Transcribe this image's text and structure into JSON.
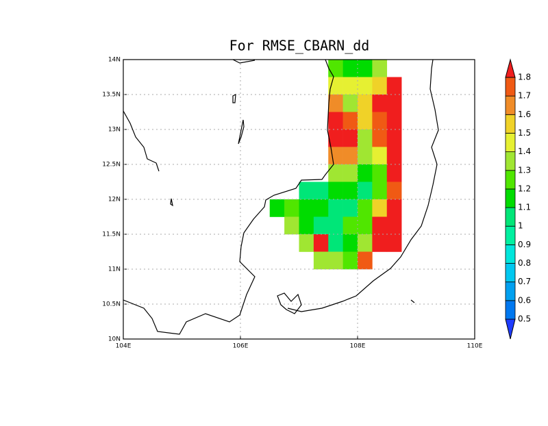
{
  "chart_data": {
    "type": "gridmap",
    "title": "For RMSE_CBARN_dd",
    "x": [
      106.625,
      106.875,
      107.125,
      107.375,
      107.625,
      107.875,
      108.125,
      108.375,
      108.625
    ],
    "y": [
      13.875,
      13.625,
      13.375,
      13.125,
      12.875,
      12.625,
      12.375,
      12.125,
      11.875,
      11.625,
      11.375,
      11.125
    ],
    "cell": 0.25,
    "values": [
      [
        null,
        null,
        null,
        null,
        1.25,
        1.15,
        1.15,
        1.35,
        null
      ],
      [
        null,
        null,
        null,
        null,
        1.45,
        1.45,
        1.45,
        1.55,
        1.85
      ],
      [
        null,
        null,
        null,
        null,
        1.65,
        1.35,
        1.55,
        1.85,
        1.85
      ],
      [
        null,
        null,
        null,
        null,
        1.85,
        1.75,
        1.55,
        1.75,
        1.85
      ],
      [
        null,
        null,
        null,
        null,
        1.85,
        1.85,
        1.35,
        1.75,
        1.85
      ],
      [
        null,
        null,
        null,
        null,
        1.65,
        1.65,
        1.35,
        1.45,
        1.85
      ],
      [
        null,
        null,
        null,
        null,
        1.35,
        1.35,
        1.15,
        1.25,
        1.85
      ],
      [
        null,
        null,
        1.05,
        1.05,
        1.15,
        1.15,
        1.05,
        1.25,
        1.75
      ],
      [
        1.15,
        1.25,
        1.15,
        1.15,
        1.05,
        1.05,
        1.25,
        1.55,
        1.85
      ],
      [
        null,
        1.35,
        1.15,
        1.05,
        1.05,
        1.25,
        1.25,
        1.85,
        1.85
      ],
      [
        null,
        null,
        1.35,
        1.85,
        1.05,
        1.15,
        1.35,
        1.85,
        1.85
      ],
      [
        null,
        null,
        null,
        1.35,
        1.35,
        1.25,
        1.75,
        null,
        null
      ]
    ],
    "levels": [
      0.5,
      0.6,
      0.7,
      0.8,
      0.9,
      1,
      1.1,
      1.2,
      1.3,
      1.4,
      1.5,
      1.6,
      1.7,
      1.8
    ],
    "colors": [
      "#1e3cff",
      "#0078f0",
      "#00a0f0",
      "#00c8f0",
      "#00e6dc",
      "#00f0a0",
      "#00e678",
      "#00dc00",
      "#50e600",
      "#a0e632",
      "#e6f032",
      "#f0d228",
      "#f08c28",
      "#f05a14",
      "#f01e1e"
    ],
    "xlim": [
      104,
      110
    ],
    "ylim": [
      10,
      14
    ],
    "xticks": [
      {
        "value": 104,
        "label": "104E"
      },
      {
        "value": 106,
        "label": "106E"
      },
      {
        "value": 108,
        "label": "108E"
      },
      {
        "value": 110,
        "label": "110E"
      }
    ],
    "yticks": [
      {
        "value": 10,
        "label": "10N"
      },
      {
        "value": 10.5,
        "label": "10.5N"
      },
      {
        "value": 11,
        "label": "11N"
      },
      {
        "value": 11.5,
        "label": "11.5N"
      },
      {
        "value": 12,
        "label": "12N"
      },
      {
        "value": 12.5,
        "label": "12.5N"
      },
      {
        "value": 13,
        "label": "13N"
      },
      {
        "value": 13.5,
        "label": "13.5N"
      },
      {
        "value": 14,
        "label": "14N"
      }
    ],
    "grid": true
  }
}
